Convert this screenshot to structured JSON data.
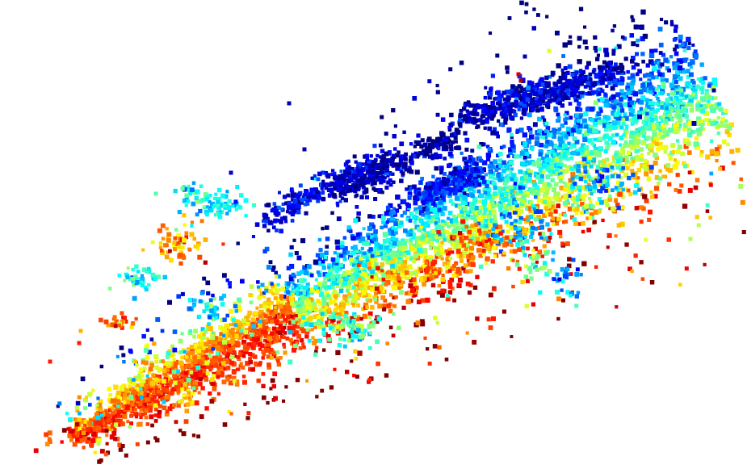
{
  "scene": {
    "kind": "3d-point-cloud",
    "background_color": "#ffffff",
    "colormap": "jet",
    "colormap_stops": [
      "#00008f",
      "#0000ff",
      "#0080ff",
      "#00ffff",
      "#80ff80",
      "#ffff00",
      "#ff8000",
      "#ff0000"
    ],
    "point_shape": "square",
    "labels_shown": false
  }
}
